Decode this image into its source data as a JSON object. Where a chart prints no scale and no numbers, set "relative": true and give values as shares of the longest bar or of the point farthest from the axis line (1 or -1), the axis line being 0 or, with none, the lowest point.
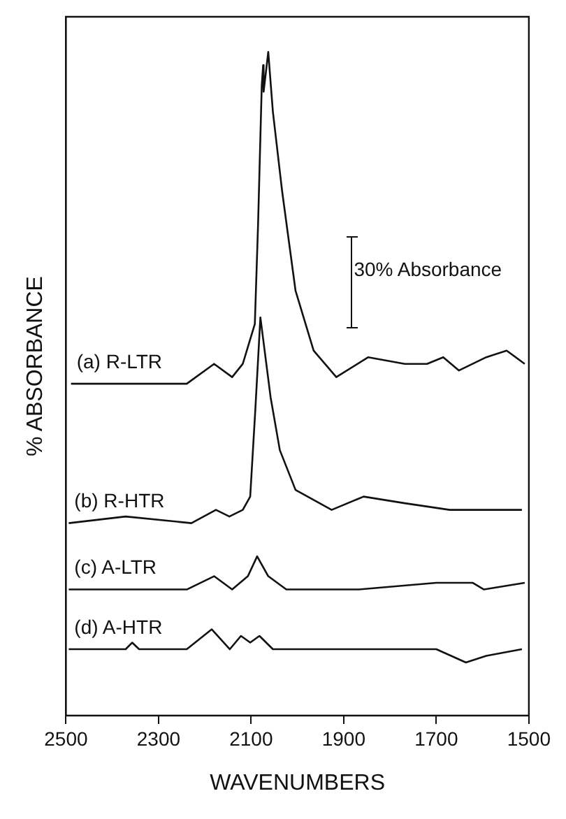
{
  "chart_data": {
    "type": "line",
    "relative": true,
    "xlabel": "WAVENUMBERS",
    "ylabel": "% ABSORBANCE",
    "xlim": [
      2500,
      1500
    ],
    "xticks": [
      2500,
      2300,
      2100,
      1900,
      1700,
      1500
    ],
    "grid": false,
    "legend": false,
    "marker": "none",
    "line_style": "solid",
    "annotations": [
      "30% Absorbance"
    ],
    "series": [
      {
        "name": "(a) R-LTR",
        "color": "#111111",
        "x": [
          2489,
          2239,
          2180,
          2141,
          2118,
          2092,
          2085,
          2077,
          2074,
          2073,
          2063,
          2053,
          2033,
          2004,
          1965,
          1916,
          1847,
          1768,
          1720,
          1685,
          1651,
          1592,
          1548,
          1509
        ],
        "values": [
          0.5,
          0.5,
          0.53,
          0.51,
          0.53,
          0.59,
          0.74,
          0.95,
          0.98,
          0.94,
          1,
          0.91,
          0.79,
          0.64,
          0.55,
          0.51,
          0.54,
          0.53,
          0.53,
          0.54,
          0.52,
          0.54,
          0.55,
          0.53
        ]
      },
      {
        "name": "(b) R-HTR",
        "color": "#111111",
        "x": [
          2494,
          2371,
          2229,
          2176,
          2147,
          2118,
          2102,
          2091,
          2080,
          2058,
          2038,
          2004,
          1926,
          1857,
          1768,
          1671,
          1574,
          1515
        ],
        "values": [
          0.29,
          0.3,
          0.29,
          0.31,
          0.3,
          0.31,
          0.33,
          0.46,
          0.6,
          0.48,
          0.4,
          0.34,
          0.31,
          0.33,
          0.32,
          0.31,
          0.31,
          0.31
        ]
      },
      {
        "name": "(c) A-LTR",
        "color": "#111111",
        "x": [
          2494,
          2239,
          2180,
          2141,
          2107,
          2087,
          2063,
          2024,
          1867,
          1700,
          1621,
          1597,
          1509
        ],
        "values": [
          0.19,
          0.19,
          0.21,
          0.19,
          0.21,
          0.24,
          0.21,
          0.19,
          0.19,
          0.2,
          0.2,
          0.19,
          0.2
        ]
      },
      {
        "name": "(d) A-HTR",
        "color": "#111111",
        "x": [
          2494,
          2371,
          2357,
          2342,
          2318,
          2239,
          2185,
          2146,
          2122,
          2102,
          2082,
          2053,
          1700,
          1636,
          1592,
          1515
        ],
        "values": [
          0.1,
          0.1,
          0.11,
          0.1,
          0.1,
          0.1,
          0.13,
          0.1,
          0.12,
          0.11,
          0.12,
          0.1,
          0.1,
          0.08,
          0.09,
          0.1
        ]
      }
    ]
  }
}
